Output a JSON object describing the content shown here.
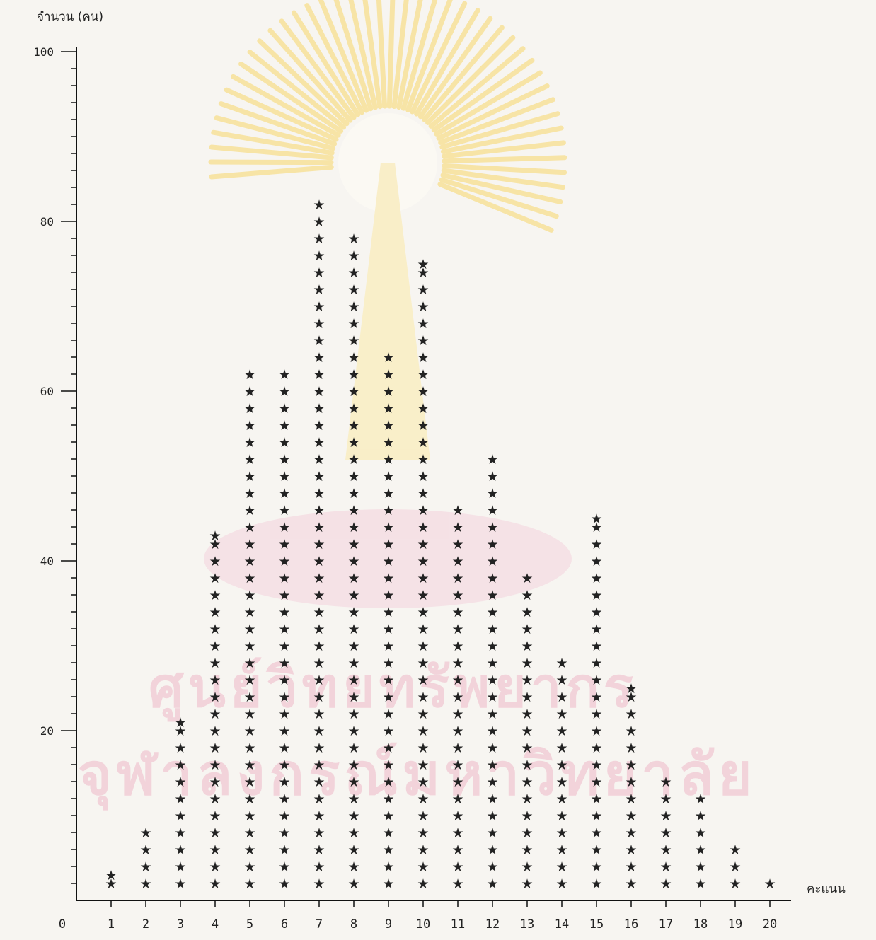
{
  "chart_data": {
    "type": "scatter",
    "marker": "★",
    "ylabel": "จำนวน (คน)",
    "xlabel": "คะแนน",
    "ylim": [
      0,
      100
    ],
    "xlim": [
      0,
      20
    ],
    "y_ticks": [
      20,
      40,
      60,
      80,
      100
    ],
    "x_ticks": [
      0,
      1,
      2,
      3,
      4,
      5,
      6,
      7,
      8,
      9,
      10,
      11,
      12,
      13,
      14,
      15,
      16,
      17,
      18,
      19,
      20
    ],
    "categories": [
      1,
      2,
      3,
      4,
      5,
      6,
      7,
      8,
      9,
      10,
      11,
      12,
      13,
      14,
      15,
      16,
      17,
      18,
      19,
      20
    ],
    "values": [
      3,
      8,
      21,
      43,
      62,
      62,
      82,
      78,
      64,
      75,
      46,
      52,
      38,
      28,
      45,
      25,
      14,
      12,
      6,
      2
    ],
    "grid": false,
    "legend": "none",
    "colors": {
      "marker": "#222222",
      "axis": "#111111"
    }
  },
  "watermark": {
    "line1": "ศูนย์วิทยทรัพยากร",
    "line2": "จุฬาลงกรณ์มหาวิทยาลัย",
    "color": "#f2c8d2"
  }
}
